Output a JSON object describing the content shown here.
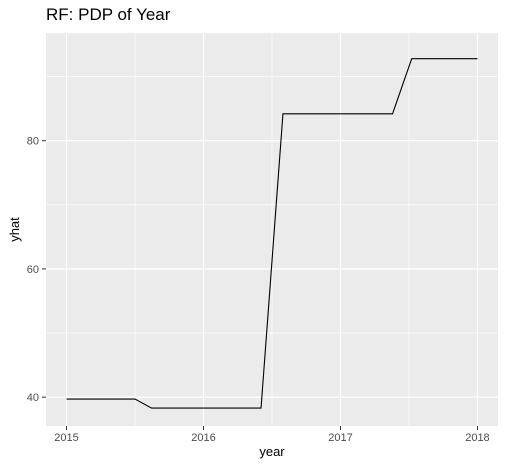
{
  "chart_data": {
    "type": "line",
    "title": "RF: PDP of Year",
    "xlabel": "year",
    "ylabel": "yhat",
    "x": [
      2015,
      2015.5,
      2015.62,
      2016.0,
      2016.42,
      2016.58,
      2017.0,
      2017.38,
      2017.52,
      2018.0
    ],
    "y": [
      39.7,
      39.7,
      38.3,
      38.3,
      38.3,
      84.2,
      84.2,
      84.2,
      92.8,
      92.8
    ],
    "xlim": [
      2014.85,
      2018.15
    ],
    "ylim": [
      35.5,
      96.8
    ],
    "x_ticks": [
      2015,
      2016,
      2017,
      2018
    ],
    "x_tick_labels": [
      "2015",
      "2016",
      "2017",
      "2018"
    ],
    "y_ticks": [
      40,
      60,
      80
    ],
    "y_tick_labels": [
      "40",
      "60",
      "80"
    ],
    "grid": true,
    "line_color": "#000000",
    "panel_color": "#EBEBEB",
    "grid_color": "#FFFFFF"
  }
}
